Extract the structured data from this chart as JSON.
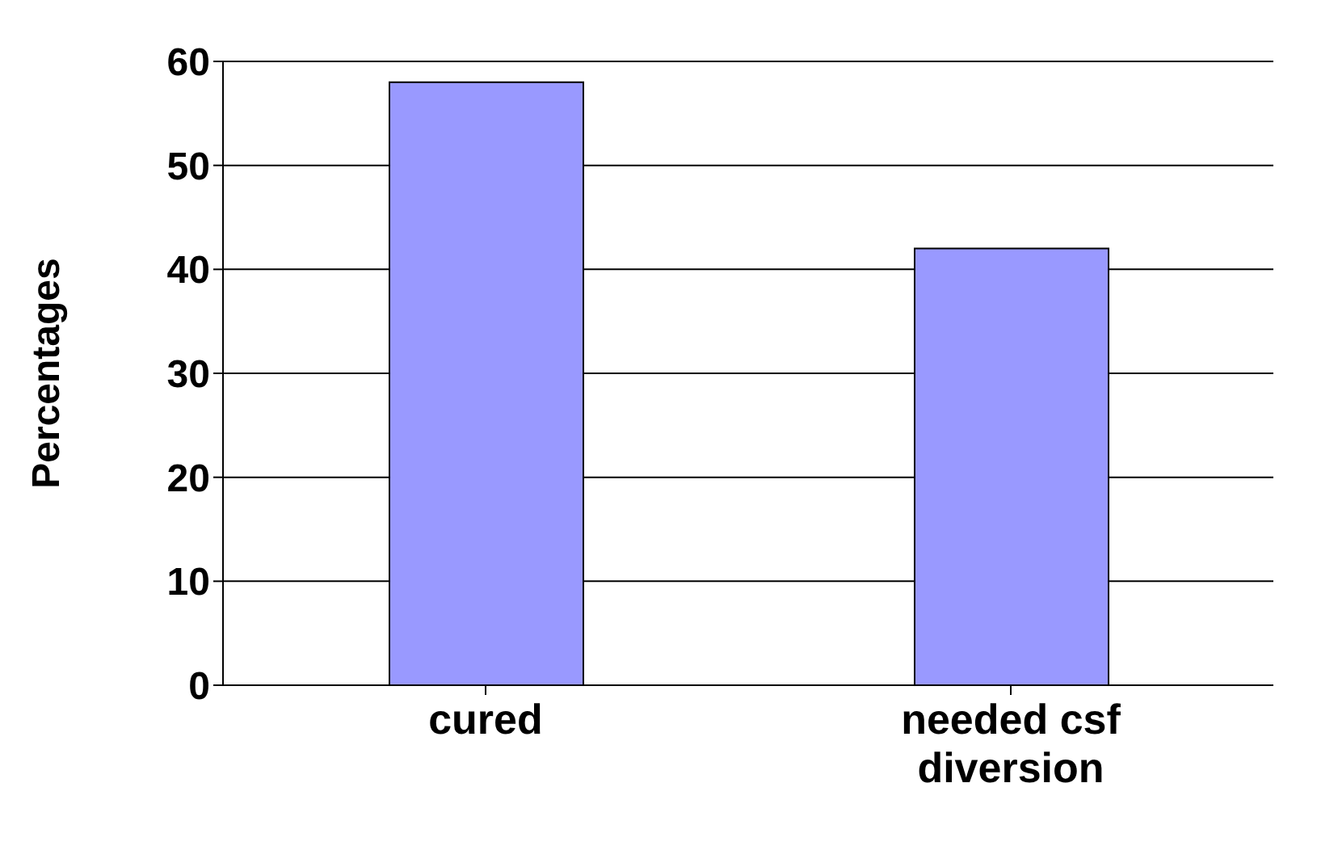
{
  "chart_data": {
    "type": "bar",
    "ylabel": "Percentages",
    "categories": [
      "cured",
      "needed csf diversion"
    ],
    "values": [
      58,
      42
    ],
    "color": "#9999ff",
    "ylim": [
      0,
      60
    ],
    "yticks": [
      0,
      10,
      20,
      30,
      40,
      50,
      60
    ],
    "grid": "y"
  }
}
